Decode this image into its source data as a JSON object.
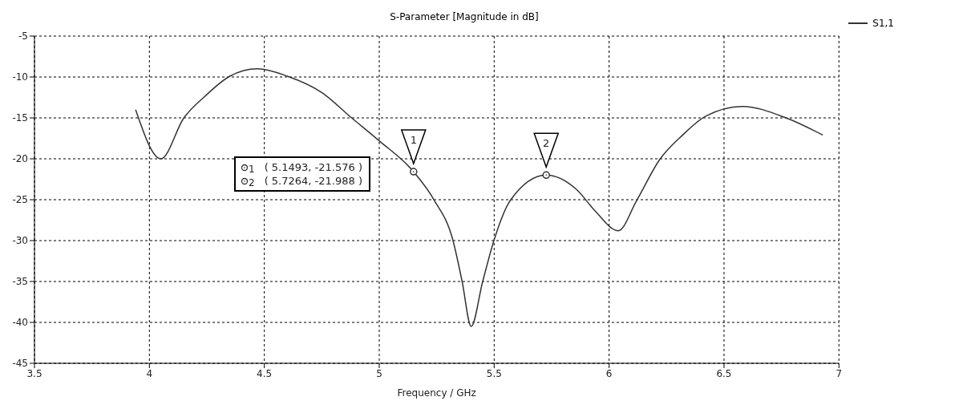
{
  "chart_data": {
    "type": "line",
    "title": "S-Parameter [Magnitude in dB]",
    "xlabel": "Frequency / GHz",
    "x": [
      3.94,
      4.05,
      4.15,
      4.24,
      4.35,
      4.47,
      4.6,
      4.75,
      4.88,
      5.0,
      5.1493,
      5.24,
      5.32,
      5.36,
      5.4,
      5.45,
      5.5,
      5.57,
      5.7264,
      5.86,
      5.94,
      6.04,
      6.12,
      6.22,
      6.32,
      6.42,
      6.58,
      6.77,
      6.93
    ],
    "series": [
      {
        "name": "S1,1",
        "color": "#333333",
        "values": [
          -14.0,
          -20.0,
          -15.0,
          -12.4,
          -9.9,
          -9.0,
          -9.9,
          -11.9,
          -15.0,
          -17.8,
          -21.576,
          -25.1,
          -29.9,
          -34.9,
          -40.5,
          -35.0,
          -29.9,
          -25.1,
          -21.988,
          -23.8,
          -26.4,
          -28.8,
          -25.1,
          -20.1,
          -17.1,
          -14.8,
          -13.6,
          -15.0,
          -17.1
        ]
      }
    ],
    "xlim": [
      3.5,
      7
    ],
    "xticks": [
      3.5,
      4,
      4.5,
      5,
      5.5,
      6,
      6.5,
      7
    ],
    "ylim": [
      -45,
      -5
    ],
    "yticks": [
      -45,
      -40,
      -35,
      -30,
      -25,
      -20,
      -15,
      -10,
      -5
    ],
    "grid": true,
    "legend": "top right",
    "marker": "none",
    "line_style": "solid",
    "annotations": [
      {
        "text": "1",
        "x": 5.1493,
        "y": -21.576
      },
      {
        "text": "2",
        "x": 5.7264,
        "y": -21.988
      },
      "( 5.1493, -21.576 )",
      "( 5.7264, -21.988 )"
    ]
  }
}
